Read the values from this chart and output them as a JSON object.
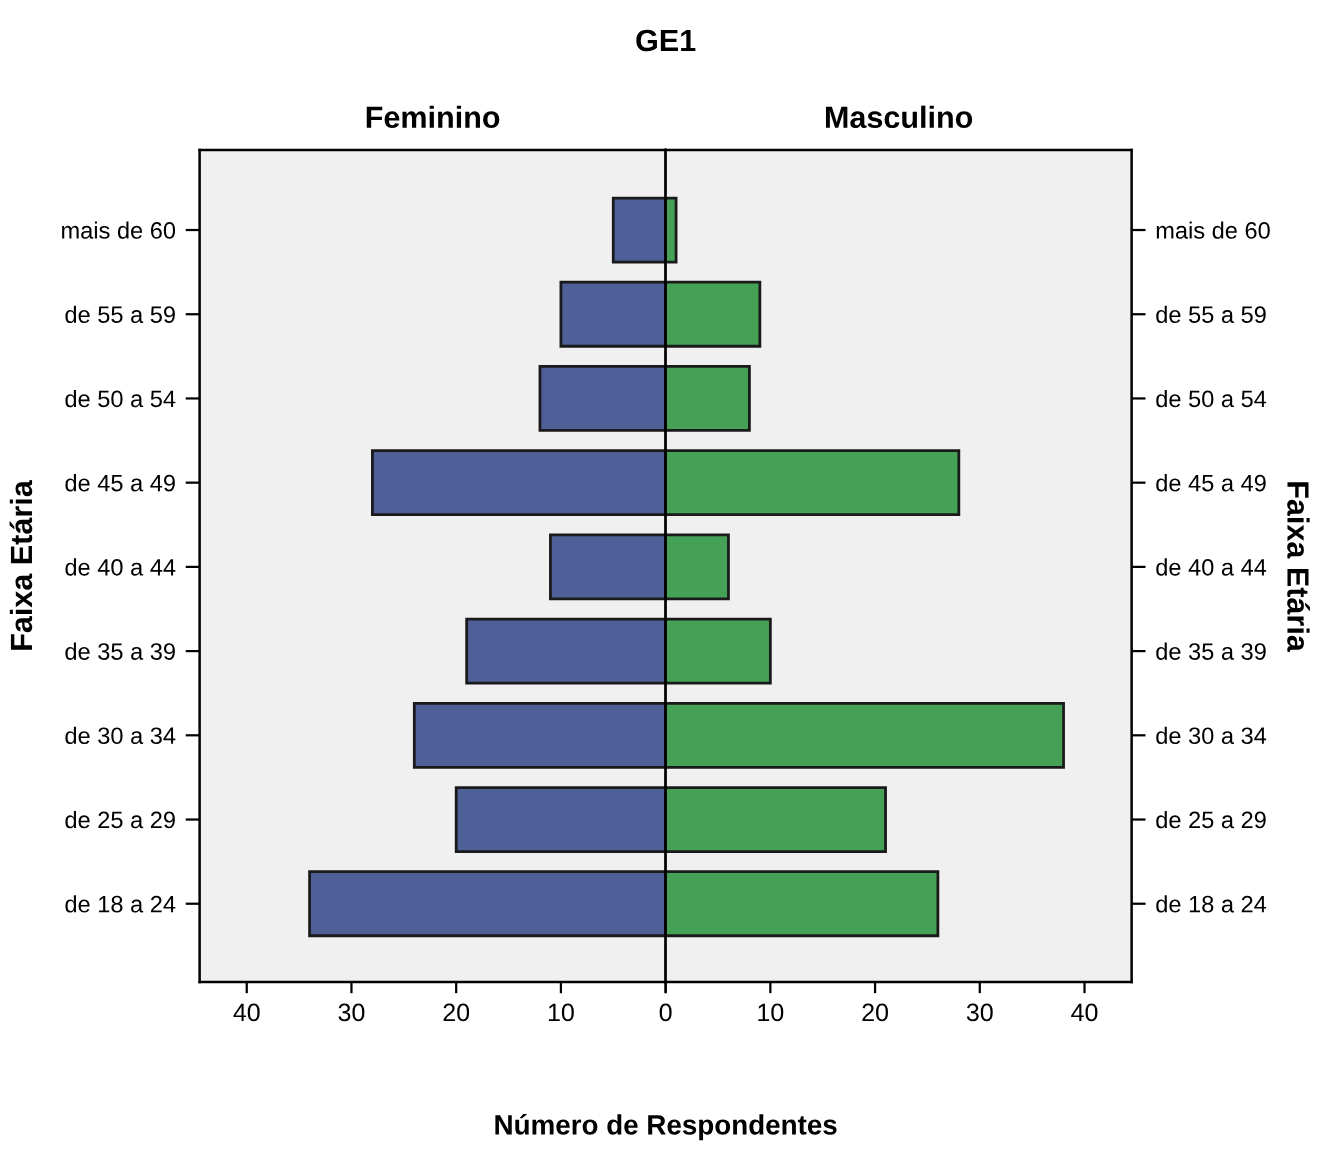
{
  "chart_data": [
    {
      "type": "bar",
      "orientation": "horizontal",
      "title": "Feminino",
      "ylabel": "Faixa Etária",
      "xlabel": "Número de Respondentes",
      "annotations": [
        "GE1"
      ],
      "categories": [
        "mais de 60",
        "de 55 a 59",
        "de 50 a 54",
        "de 45 a 49",
        "de 40 a 44",
        "de 35 a 39",
        "de 30 a 34",
        "de 25 a 29",
        "de 18 a 24"
      ],
      "values": [
        5,
        10,
        12,
        28,
        11,
        19,
        24,
        20,
        34
      ],
      "color": "#4f5f98",
      "xlim": [
        44.5,
        0
      ],
      "xticks": [
        40,
        30,
        20,
        10,
        {
          "value": 0,
          "label": null
        }
      ],
      "grid": false,
      "legend": false
    },
    {
      "type": "bar",
      "orientation": "horizontal",
      "title": "Masculino",
      "ylabel": "Faixa Etária",
      "categories": [
        "mais de 60",
        "de 55 a 59",
        "de 50 a 54",
        "de 45 a 49",
        "de 40 a 44",
        "de 35 a 39",
        "de 30 a 34",
        "de 25 a 29",
        "de 18 a 24"
      ],
      "values": [
        1,
        9,
        8,
        28,
        6,
        10,
        38,
        21,
        26
      ],
      "color": "#45a156",
      "xlim": [
        0,
        44.5
      ],
      "xticks": [
        0,
        10,
        20,
        30,
        40
      ],
      "grid": false,
      "legend": false
    }
  ]
}
